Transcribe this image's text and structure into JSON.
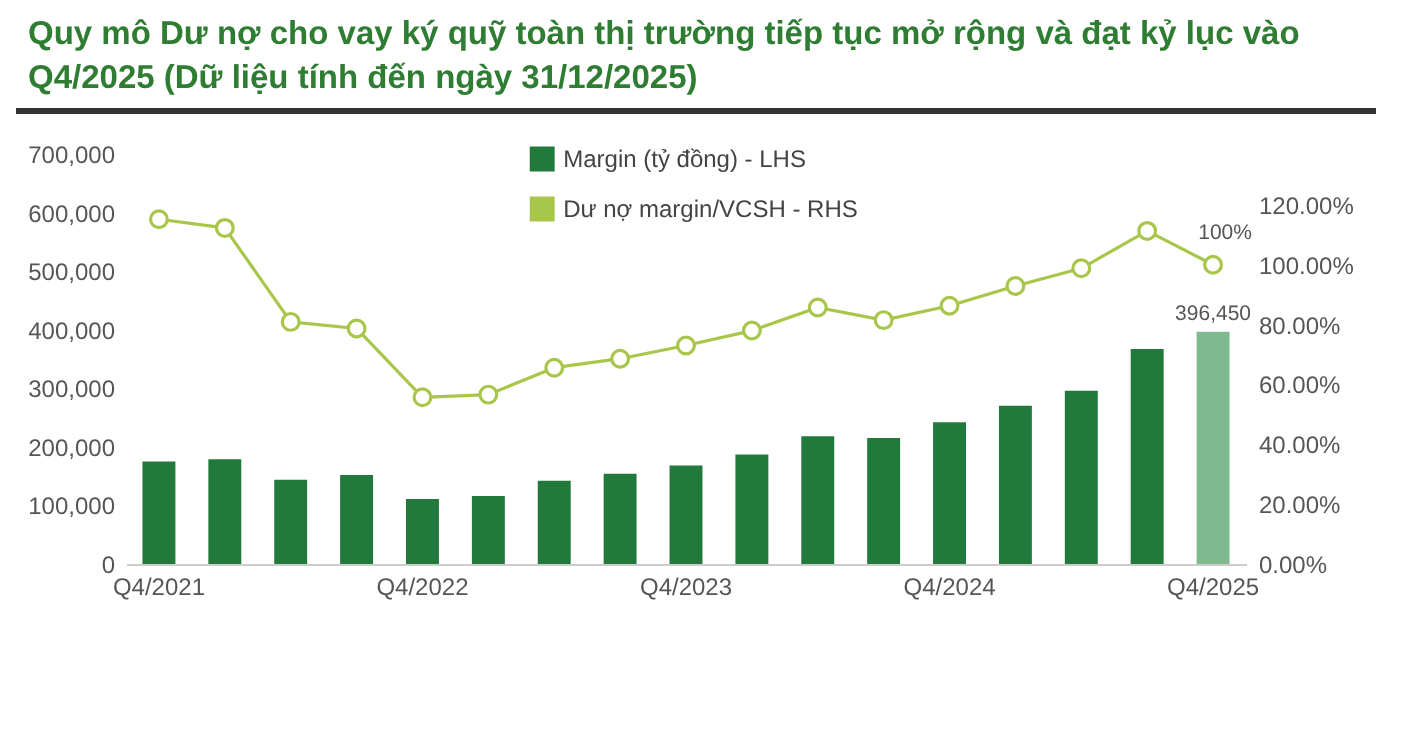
{
  "chart_data": {
    "type": "bar",
    "title": "Quy mô Dư nợ cho vay ký quỹ toàn thị trường tiếp tục mở rộng và đạt kỷ lục vào Q4/2025 (Dữ liệu tính đến ngày 31/12/2025)",
    "categories": [
      "Q4/2021",
      null,
      null,
      null,
      "Q4/2022",
      null,
      null,
      null,
      "Q4/2023",
      null,
      null,
      null,
      "Q4/2024",
      null,
      null,
      null,
      "Q4/2025"
    ],
    "series": [
      {
        "name": "Margin (tỷ đồng) - LHS",
        "type": "bar",
        "color": "#217a3c",
        "colors": [
          "#217a3c",
          "#217a3c",
          "#217a3c",
          "#217a3c",
          "#217a3c",
          "#217a3c",
          "#217a3c",
          "#217a3c",
          "#217a3c",
          "#217a3c",
          "#217a3c",
          "#217a3c",
          "#217a3c",
          "#217a3c",
          "#217a3c",
          "#217a3c",
          "#7fb98e"
        ],
        "values": [
          175000,
          179000,
          144000,
          152000,
          111000,
          116000,
          142000,
          154000,
          168000,
          187000,
          218000,
          215000,
          242000,
          270000,
          296000,
          367000,
          396450
        ],
        "value_labels": [
          null,
          null,
          null,
          null,
          null,
          null,
          null,
          null,
          null,
          null,
          null,
          null,
          null,
          null,
          null,
          null,
          "396,450"
        ]
      },
      {
        "name": "Dư nợ margin/VCSH - RHS",
        "type": "line",
        "axis": "y2",
        "color": "#a8c64a",
        "marker": "circle",
        "values": [
          115.2,
          112.3,
          80.9,
          78.7,
          55.7,
          56.6,
          65.6,
          68.6,
          73.0,
          78.0,
          85.7,
          81.5,
          86.3,
          92.9,
          98.8,
          111.3,
          100
        ],
        "value_labels": [
          null,
          null,
          null,
          null,
          null,
          null,
          null,
          null,
          null,
          null,
          null,
          null,
          null,
          null,
          null,
          null,
          "100%"
        ]
      }
    ],
    "ylim": [
      0,
      700000
    ],
    "yticks": [
      {
        "value": 0,
        "label": "0"
      },
      {
        "value": 100000,
        "label": "100,000"
      },
      {
        "value": 200000,
        "label": "200,000"
      },
      {
        "value": 300000,
        "label": "300,000"
      },
      {
        "value": 400000,
        "label": "400,000"
      },
      {
        "value": 500000,
        "label": "500,000"
      },
      {
        "value": 600000,
        "label": "600,000"
      },
      {
        "value": 700000,
        "label": "700,000"
      }
    ],
    "y2lim": [
      0,
      137
    ],
    "y2ticks": [
      {
        "value": 0,
        "label": "0.00%"
      },
      {
        "value": 20,
        "label": "20.00%"
      },
      {
        "value": 40,
        "label": "40.00%"
      },
      {
        "value": 60,
        "label": "60.00%"
      },
      {
        "value": 80,
        "label": "80.00%"
      },
      {
        "value": 100,
        "label": "100.00%"
      },
      {
        "value": 120,
        "label": "120.00%"
      }
    ],
    "grid": false,
    "legend": "top"
  }
}
